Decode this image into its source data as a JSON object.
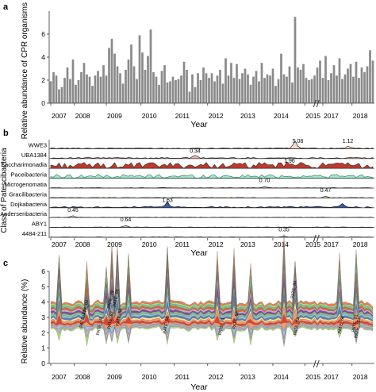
{
  "panel_labels": [
    "a",
    "b",
    "c"
  ],
  "colors": {
    "bar": "#8a8a8a",
    "axis": "#333333",
    "saccharimonadia": "#c0392b",
    "paceibacteria": "#a8e6d8",
    "paceibacteria_stroke": "#2e8b57",
    "dojkabacteria": "#3a5a9c",
    "pate_palette": [
      "#d7301f",
      "#fc8d59",
      "#fee090",
      "#4575b4",
      "#91bfdb",
      "#74c476",
      "#7b3294",
      "#c2a5cf",
      "#e6550d",
      "#66c2a5",
      "#a6d96a",
      "#f46d43"
    ]
  },
  "chart_data": [
    {
      "type": "bar",
      "panel": "a",
      "ylabel": "Relative abundance of CPR organisms (%)",
      "xlabel": "Year",
      "ylim": [
        0,
        8
      ],
      "yticks": [
        "0",
        "2",
        "4",
        "6"
      ],
      "ytick_values": [
        0,
        2,
        4,
        6
      ],
      "xtick_labels": [
        "2007",
        "2008",
        "2009",
        "2010",
        "2011",
        "2012",
        "2013",
        "2014",
        "2015",
        "2017",
        "2018"
      ],
      "xtick_positions": [
        0,
        8.5,
        20,
        32.5,
        44.5,
        56.5,
        68,
        80,
        91.5,
        98,
        108.5
      ],
      "break_position": 95.5,
      "values": [
        1.9,
        2.7,
        2.4,
        1.2,
        1.4,
        2.2,
        3.1,
        2.1,
        3.8,
        1.6,
        2.0,
        2.7,
        3.5,
        2.5,
        2.3,
        1.5,
        2.4,
        2.8,
        2.3,
        3.3,
        2.4,
        4.8,
        5.6,
        4.3,
        3.2,
        2.6,
        1.7,
        2.9,
        3.8,
        5.1,
        3.2,
        2.1,
        5.9,
        4.4,
        2.9,
        4.1,
        6.4,
        2.7,
        2.3,
        1.6,
        2.8,
        3.3,
        1.8,
        1.9,
        2.3,
        2.0,
        2.1,
        2.4,
        3.6,
        2.9,
        1.0,
        2.5,
        1.4,
        2.6,
        2.0,
        3.1,
        2.6,
        2.2,
        2.6,
        1.9,
        2.4,
        2.9,
        1.7,
        3.9,
        2.4,
        3.5,
        2.2,
        3.4,
        2.1,
        2.6,
        3.0,
        2.5,
        1.6,
        2.3,
        2.8,
        1.9,
        3.5,
        2.2,
        2.5,
        2.4,
        3.0,
        1.5,
        2.1,
        4.3,
        2.5,
        2.3,
        3.2,
        1.8,
        7.5,
        3.1,
        2.9,
        3.4,
        2.2,
        2.0,
        2.1,
        2.4,
        3.1,
        3.7,
        2.2,
        4.1,
        2.0,
        2.6,
        3.3,
        2.4,
        3.9,
        2.1,
        2.5,
        3.0,
        3.4,
        2.3,
        3.6,
        2.2,
        3.1,
        2.7,
        3.2,
        4.6,
        3.7
      ]
    },
    {
      "type": "area",
      "panel": "b",
      "ylabel": "Class of Patescibacteria",
      "xlabel": "Year",
      "xtick_labels": [
        "2007",
        "2008",
        "2009",
        "2010",
        "2011",
        "2012",
        "2013",
        "2014",
        "2015",
        "2017",
        "2018"
      ],
      "series": [
        {
          "name": "WWE3",
          "annotation": "5.08",
          "annotation_x": 89,
          "annotation2": "1.12",
          "annotation2_x": 107
        },
        {
          "name": "UBA1384",
          "annotation": "0.34",
          "annotation_x": 52
        },
        {
          "name": "Saccharimonadia",
          "annotation": "1.96",
          "annotation_x": 86
        },
        {
          "name": "Paceibacteria"
        },
        {
          "name": "Microgenomatia",
          "annotation": "0.70",
          "annotation_x": 77
        },
        {
          "name": "Gracilibacteria",
          "annotation": "0.47",
          "annotation_x": 99
        },
        {
          "name": "Dojkabacteria",
          "annotation": "1.63",
          "annotation_x": 42
        },
        {
          "name": "Andersenbacteria",
          "annotation": "0.45",
          "annotation_x": 8
        },
        {
          "name": "ABY1",
          "annotation": "0.64",
          "annotation_x": 27
        },
        {
          "name": "4484-211",
          "annotation": "0.35",
          "annotation_x": 84
        }
      ]
    },
    {
      "type": "area",
      "panel": "c",
      "ylabel": "Relative abundance (%)",
      "xlabel": "Year",
      "ylim": [
        0,
        6
      ],
      "yticks": [
        "0",
        "1",
        "2",
        "3",
        "4",
        "5",
        "6"
      ],
      "ytick_values": [
        0,
        1,
        2,
        3,
        4,
        5,
        6
      ],
      "xtick_labels": [
        "2007",
        "2008",
        "2009",
        "2010",
        "2011",
        "2012",
        "2013",
        "2014",
        "2015",
        "2017",
        "2018"
      ],
      "stream_labels": [
        {
          "text": "PATE_04",
          "x": 13,
          "y": 3.55
        },
        {
          "text": "PATE_79",
          "x": 22,
          "y": 4.15
        },
        {
          "text": "PATE_86",
          "x": 24,
          "y": 4.25
        },
        {
          "text": "PATE_71",
          "x": 12,
          "y": 2.9
        },
        {
          "text": "PATE_10",
          "x": 18,
          "y": 2.4
        },
        {
          "text": "PATE_56",
          "x": 25,
          "y": 3.0
        },
        {
          "text": "PATE_82",
          "x": 22,
          "y": 2.8
        },
        {
          "text": "PATE_55",
          "x": 42,
          "y": 2.5
        },
        {
          "text": "PATE_71",
          "x": 62,
          "y": 2.4
        },
        {
          "text": "PATE_62",
          "x": 67,
          "y": 2.8
        },
        {
          "text": "PATE_84",
          "x": 88,
          "y": 4.8
        },
        {
          "text": "PATE_03",
          "x": 89,
          "y": 2.4
        },
        {
          "text": "PATE_68",
          "x": 105,
          "y": 2.5
        },
        {
          "text": "PATE_61",
          "x": 110,
          "y": 2.6
        },
        {
          "text": "PATE_134",
          "x": 111,
          "y": 2.3
        }
      ]
    }
  ]
}
